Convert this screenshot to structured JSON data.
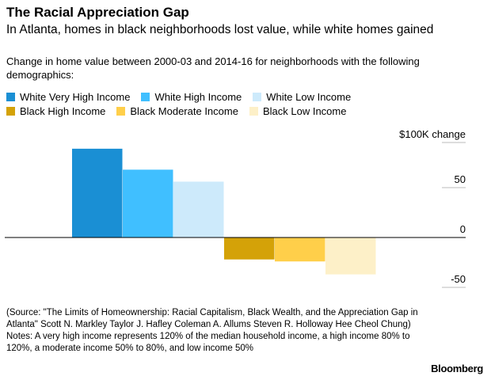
{
  "header": {
    "title": "The Racial Appreciation Gap",
    "subtitle": "In Atlanta, homes in black neighborhoods lost value, while white homes gained",
    "description": "Change in home value between 2000-03 and 2014-16 for neighborhoods with the following demographics:"
  },
  "chart_data": {
    "type": "bar",
    "categories": [
      "White Very High Income",
      "White High Income",
      "White Low Income",
      "Black High Income",
      "Black Moderate Income",
      "Black Low Income"
    ],
    "values": [
      89,
      68,
      56,
      -22,
      -24,
      -37
    ],
    "colors": [
      "#1a8fd4",
      "#40bfff",
      "#cdeafb",
      "#d4a208",
      "#ffcf4a",
      "#fdf0c8"
    ],
    "y_unit_label": "$100K change",
    "ylim": [
      -60,
      95
    ],
    "yticks": [
      50,
      0,
      -50
    ],
    "ytick_labels": [
      "50",
      "0",
      "-50"
    ],
    "grid": true,
    "legend_position": "top"
  },
  "footer": {
    "source": "(Source: \"The Limits of Homeownership: Racial Capitalism, Black Wealth, and the Appreciation Gap in Atlanta\" Scott N. Markley Taylor J. Hafley Coleman A. Allums Steven R. Holloway Hee Cheol Chung)",
    "notes": "Notes: A very high income represents 120% of the median household income, a high income 80% to 120%, a moderate income 50% to 80%, and low income 50%",
    "brand": "Bloomberg"
  }
}
